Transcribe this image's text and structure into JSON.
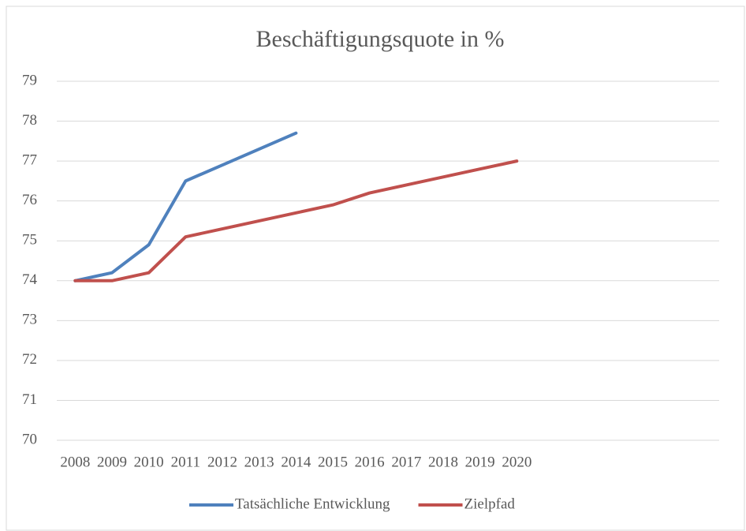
{
  "chart_data": {
    "type": "line",
    "title": "Beschäftigungsquote in %",
    "categories": [
      "2008",
      "2009",
      "2010",
      "2011",
      "2012",
      "2013",
      "2014",
      "2015",
      "2016",
      "2017",
      "2018",
      "2019",
      "2020",
      null,
      null,
      null,
      null,
      null
    ],
    "series": [
      {
        "name": "Tatsächliche Entwicklung",
        "color": "#4f81bd",
        "values": [
          74,
          74.2,
          74.9,
          76.5,
          76.9,
          77.3,
          77.7,
          null,
          null,
          null,
          null,
          null,
          null,
          null,
          null,
          null,
          null,
          null
        ]
      },
      {
        "name": "Zielpfad",
        "color": "#c0504d",
        "values": [
          74,
          74,
          74.2,
          75.1,
          75.3,
          75.5,
          75.7,
          75.9,
          76.2,
          76.4,
          76.6,
          76.8,
          77,
          null,
          null,
          null,
          null,
          null
        ]
      }
    ],
    "ylim": [
      70,
      79
    ],
    "yticks": [
      70,
      71,
      72,
      73,
      74,
      75,
      76,
      77,
      78,
      79
    ],
    "grid": true,
    "legend": "bottom"
  }
}
